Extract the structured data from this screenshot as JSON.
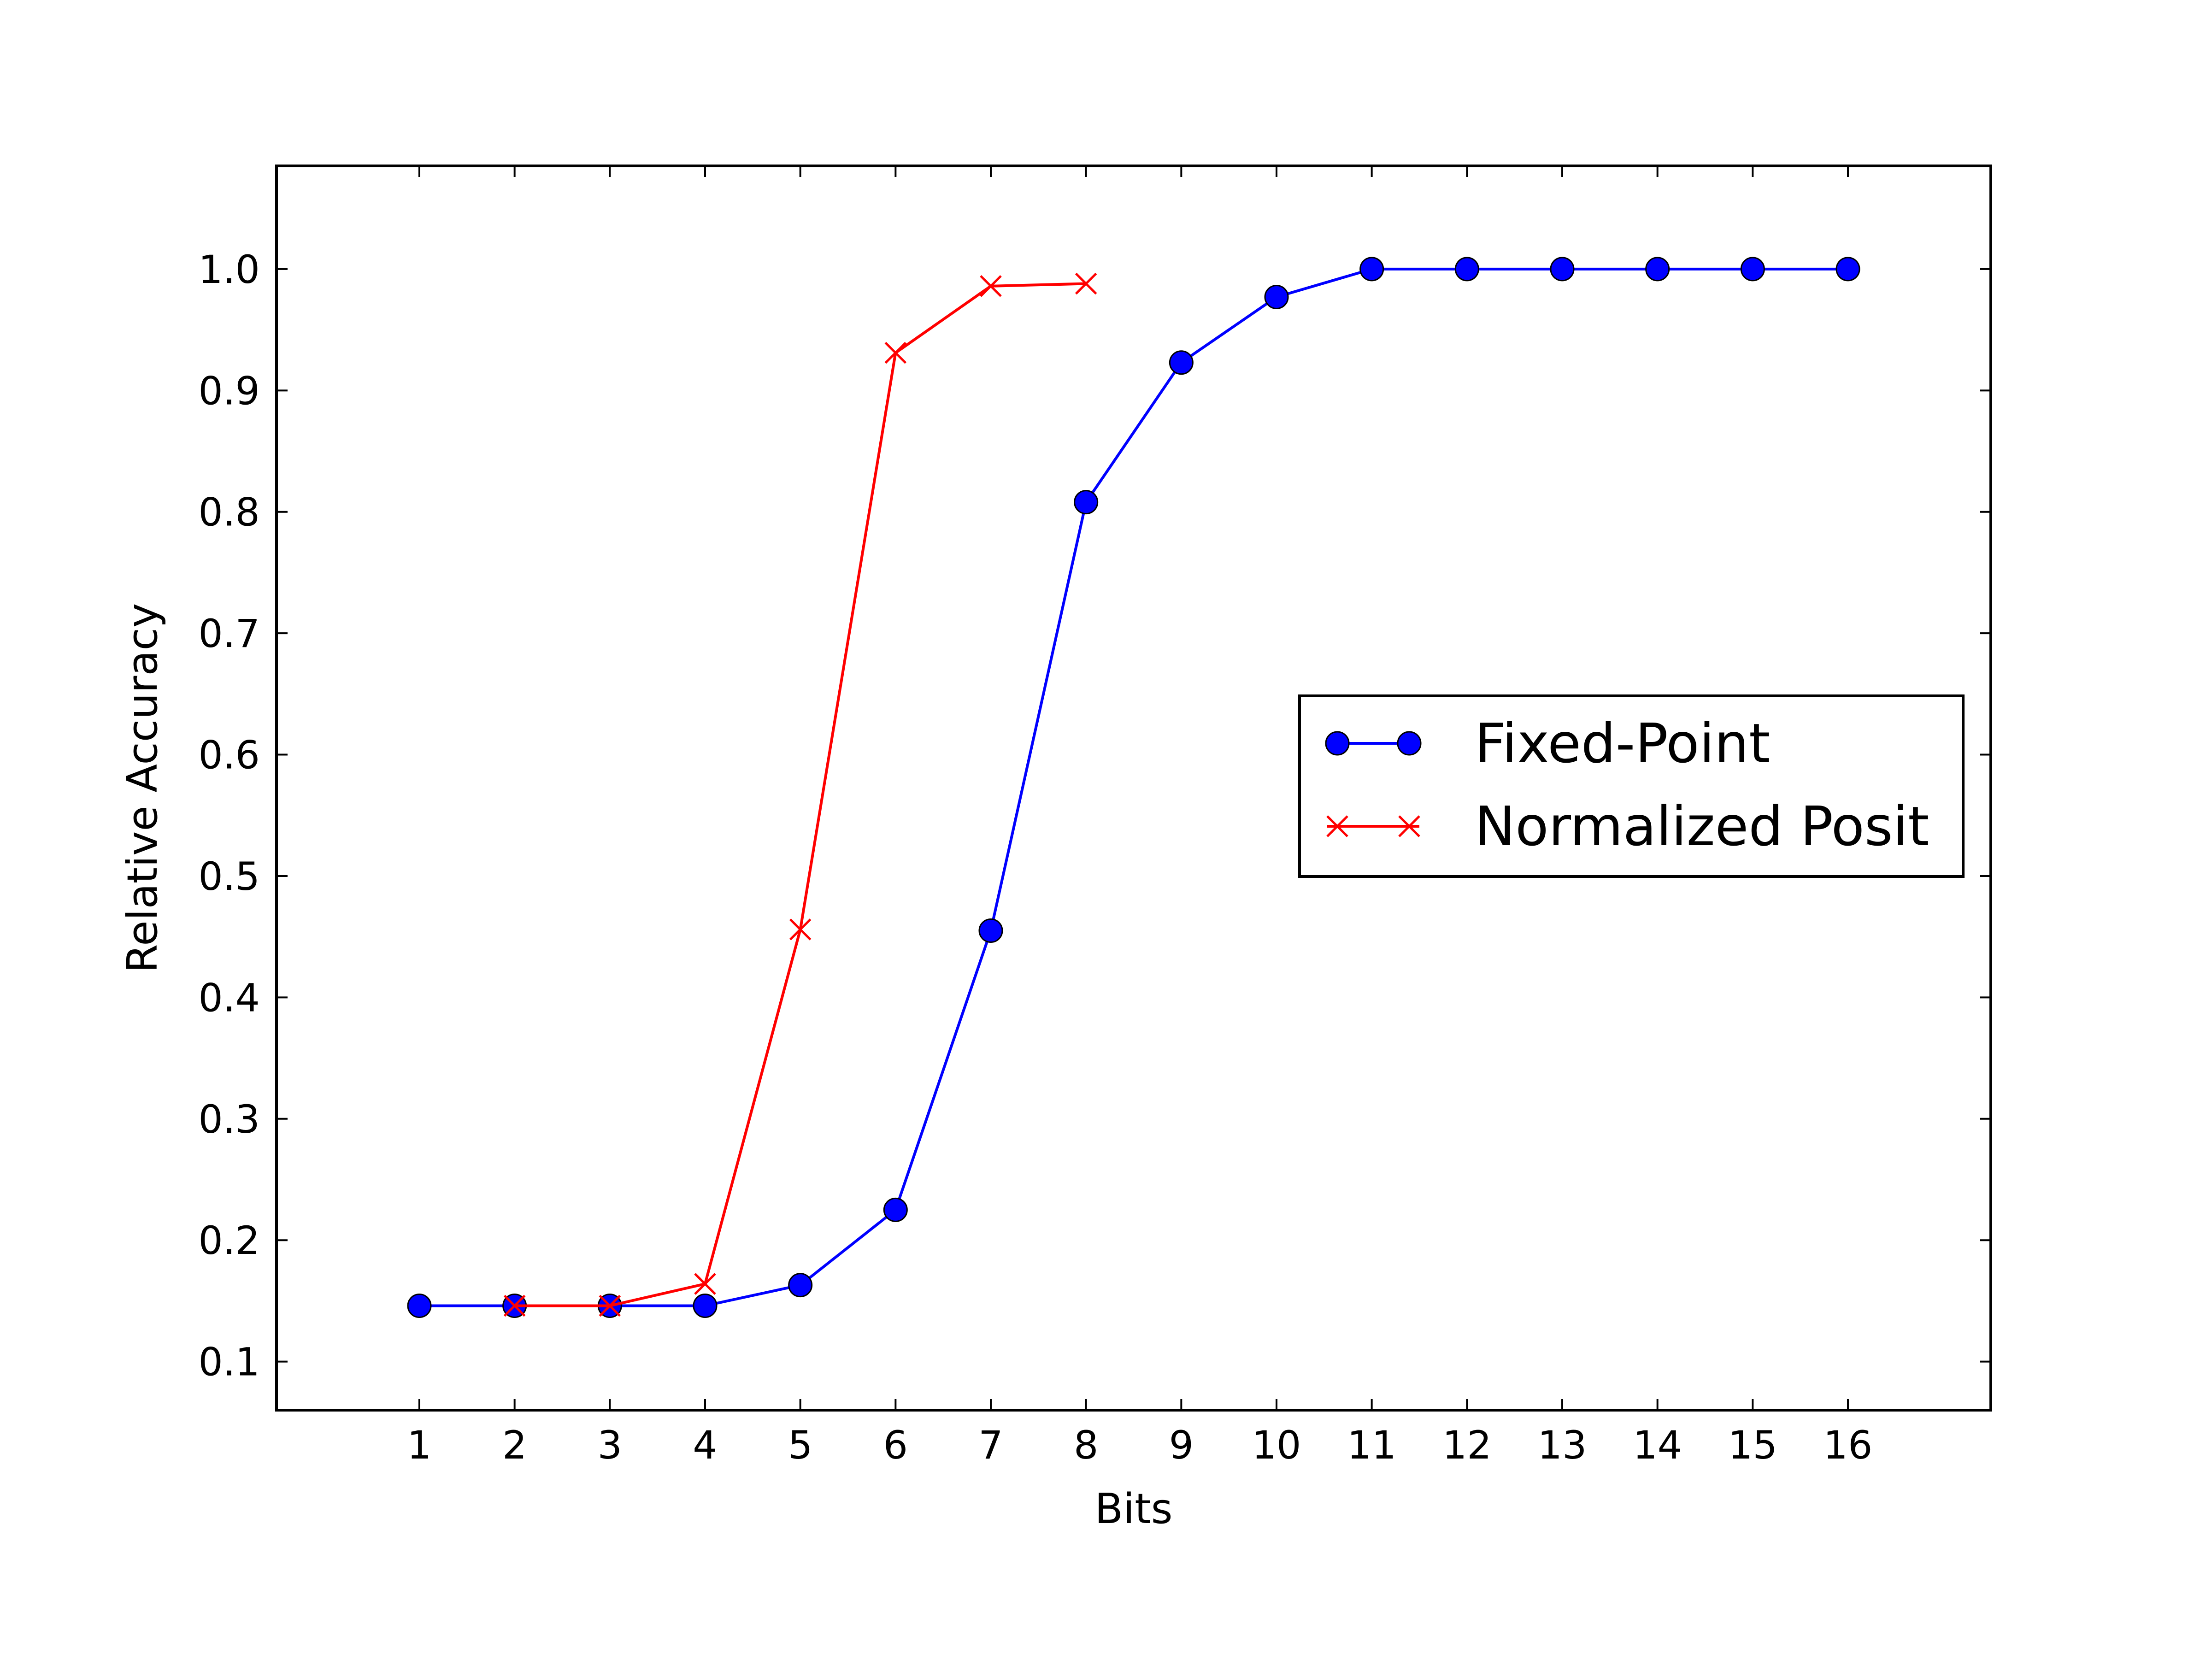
{
  "chart_data": {
    "type": "line",
    "title": "",
    "xlabel": "Bits",
    "ylabel": "Relative Accuracy",
    "xlim": [
      -0.5,
      17.5
    ],
    "ylim": [
      0.06,
      1.085
    ],
    "x_ticks": [
      "1",
      "2",
      "3",
      "4",
      "5",
      "6",
      "7",
      "8",
      "9",
      "10",
      "11",
      "12",
      "13",
      "14",
      "15",
      "16"
    ],
    "y_ticks": [
      "0.1",
      "0.2",
      "0.3",
      "0.4",
      "0.5",
      "0.6",
      "0.7",
      "0.8",
      "0.9",
      "1.0"
    ],
    "grid": false,
    "legend_position": "center-right",
    "series": [
      {
        "name": "Fixed-Point",
        "color": "#0000ff",
        "marker": "circle",
        "x": [
          1,
          2,
          3,
          4,
          5,
          6,
          7,
          8,
          9,
          10,
          11,
          12,
          13,
          14,
          15,
          16
        ],
        "y": [
          0.146,
          0.146,
          0.146,
          0.146,
          0.163,
          0.225,
          0.455,
          0.808,
          0.923,
          0.977,
          1.0,
          1.0,
          1.0,
          1.0,
          1.0,
          1.0
        ]
      },
      {
        "name": "Normalized Posit",
        "color": "#ff0000",
        "marker": "x",
        "x": [
          2,
          3,
          4,
          5,
          6,
          7,
          8
        ],
        "y": [
          0.146,
          0.146,
          0.164,
          0.456,
          0.931,
          0.986,
          0.988
        ]
      }
    ]
  }
}
